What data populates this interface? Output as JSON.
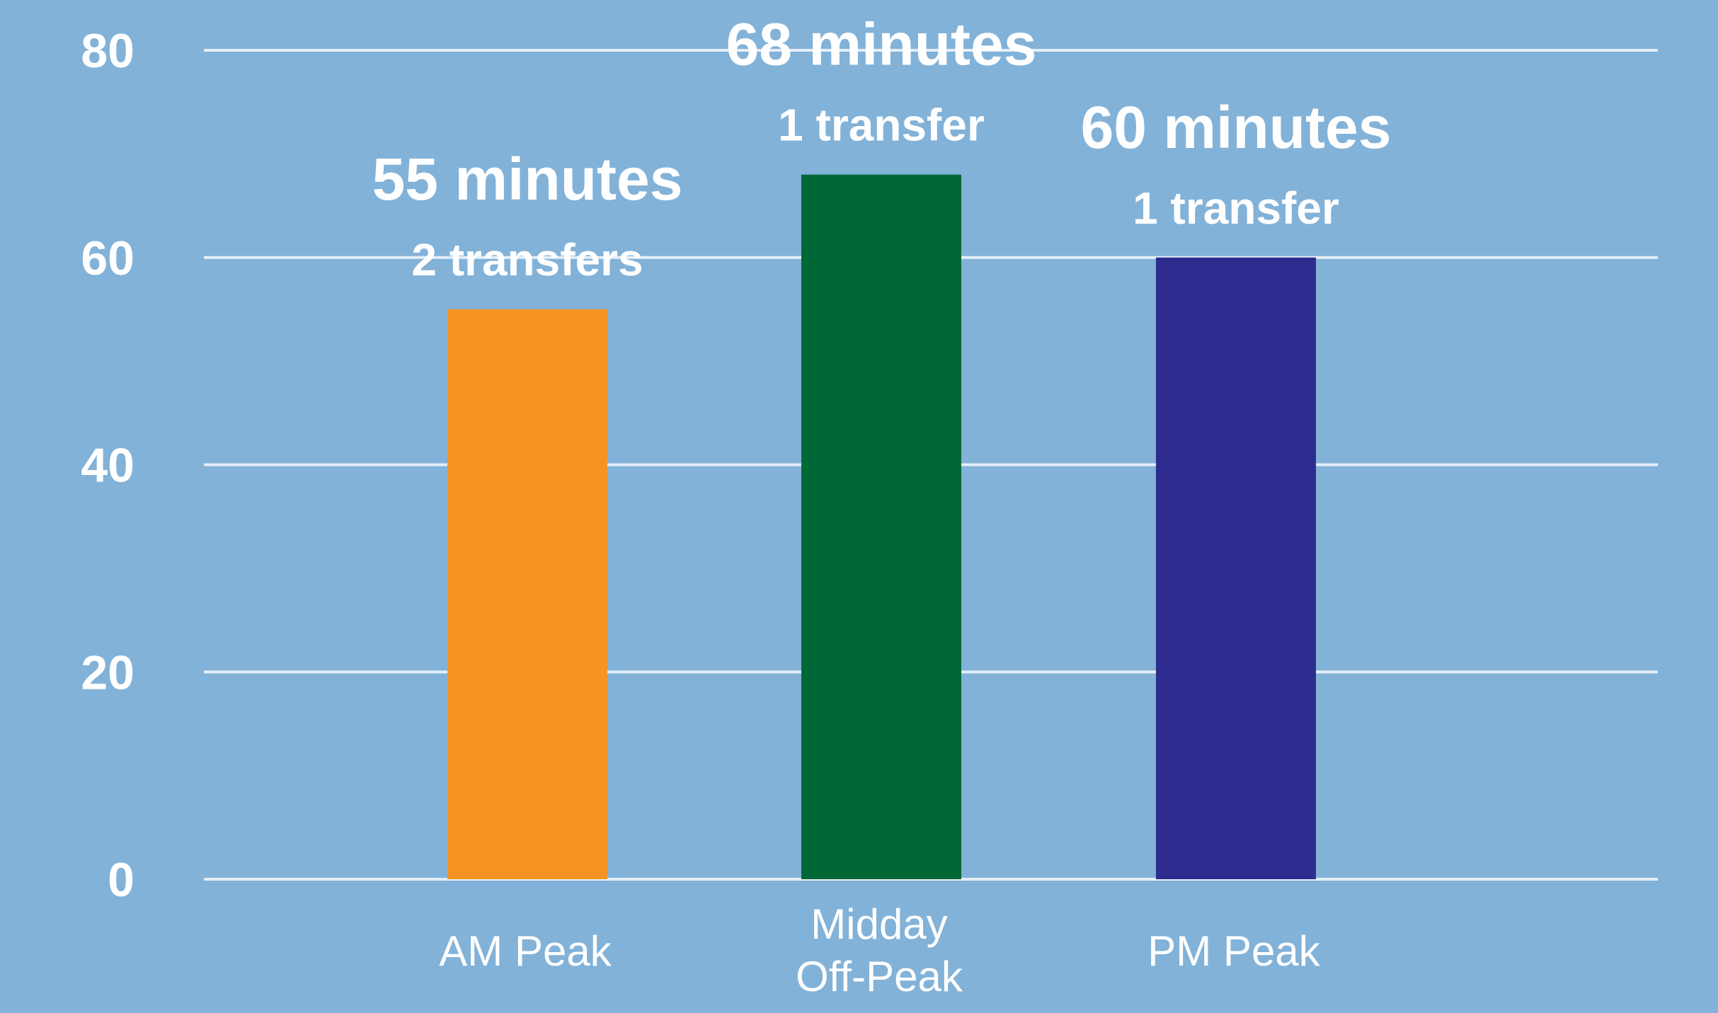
{
  "chart_data": {
    "type": "bar",
    "categories": [
      [
        "AM Peak"
      ],
      [
        "Midday",
        "Off-Peak"
      ],
      [
        "PM Peak"
      ]
    ],
    "values": [
      55,
      68,
      60
    ],
    "value_labels": [
      "55 minutes",
      "68 minutes",
      "60 minutes"
    ],
    "transfer_labels": [
      "2 transfers",
      "1 transfer",
      "1 transfer"
    ],
    "colors": [
      "#f59422",
      "#006837",
      "#2e2d8f"
    ],
    "ylim": [
      0,
      80
    ],
    "yticks": [
      0,
      20,
      40,
      60,
      80
    ],
    "grid": true,
    "title": "",
    "xlabel": "",
    "ylabel": "",
    "background": "#82b2d8",
    "gridline_color": "#e4eef8",
    "text_color": "#ffffff"
  }
}
